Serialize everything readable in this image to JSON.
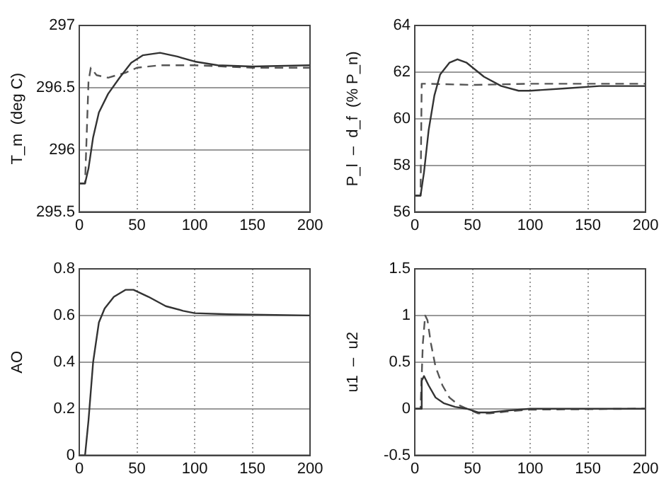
{
  "chart_data": [
    {
      "type": "line",
      "ylabel": "T_m  (deg C)",
      "xlim": [
        0,
        200
      ],
      "xticks": [
        0,
        50,
        100,
        150,
        200
      ],
      "ylim": [
        295.5,
        297
      ],
      "yticks": [
        295.5,
        296,
        296.5,
        297
      ],
      "grid": true,
      "legend": false,
      "marker": "none",
      "series": [
        {
          "color": "#333333",
          "line_style": "solid",
          "x": [
            0,
            5,
            8,
            12,
            17,
            25,
            35,
            45,
            55,
            70,
            85,
            100,
            120,
            150,
            200
          ],
          "values": [
            295.73,
            295.73,
            295.85,
            296.1,
            296.3,
            296.45,
            296.58,
            296.7,
            296.76,
            296.78,
            296.75,
            296.71,
            296.68,
            296.67,
            296.68
          ]
        },
        {
          "color": "#555555",
          "line_style": "dashed",
          "x": [
            0,
            5,
            8,
            10,
            15,
            25,
            40,
            50,
            70,
            100,
            150,
            200
          ],
          "values": [
            295.73,
            295.73,
            296.55,
            296.66,
            296.6,
            296.58,
            296.62,
            296.66,
            296.68,
            296.68,
            296.66,
            296.66
          ]
        }
      ]
    },
    {
      "type": "line",
      "ylabel": "P_l  –  d_f  (% P_n)",
      "xlim": [
        0,
        200
      ],
      "xticks": [
        0,
        50,
        100,
        150,
        200
      ],
      "ylim": [
        56,
        64
      ],
      "yticks": [
        56,
        58,
        60,
        62,
        64
      ],
      "grid": true,
      "legend": false,
      "marker": "none",
      "series": [
        {
          "color": "#333333",
          "line_style": "solid",
          "x": [
            0,
            5,
            8,
            12,
            17,
            22,
            30,
            37,
            45,
            60,
            75,
            90,
            100,
            130,
            160,
            200
          ],
          "values": [
            56.7,
            56.7,
            57.7,
            59.5,
            61,
            61.9,
            62.4,
            62.55,
            62.4,
            61.8,
            61.4,
            61.2,
            61.2,
            61.3,
            61.4,
            61.4
          ]
        },
        {
          "color": "#555555",
          "line_style": "dashed",
          "x": [
            0,
            5,
            6,
            10,
            50,
            100,
            200
          ],
          "values": [
            56.7,
            56.7,
            61.5,
            61.5,
            61.45,
            61.5,
            61.5
          ]
        }
      ]
    },
    {
      "type": "line",
      "ylabel": "AO",
      "xlim": [
        0,
        200
      ],
      "xticks": [
        0,
        50,
        100,
        150,
        200
      ],
      "ylim": [
        0,
        0.8
      ],
      "yticks": [
        0,
        0.2,
        0.4,
        0.6,
        0.8
      ],
      "grid": true,
      "legend": false,
      "marker": "none",
      "series": [
        {
          "color": "#333333",
          "line_style": "solid",
          "x": [
            0,
            5,
            6,
            8,
            12,
            17,
            22,
            30,
            40,
            47,
            60,
            75,
            90,
            100,
            130,
            160,
            200
          ],
          "values": [
            0,
            0,
            0,
            0.15,
            0.4,
            0.57,
            0.63,
            0.68,
            0.71,
            0.71,
            0.68,
            0.64,
            0.62,
            0.61,
            0.605,
            0.603,
            0.6
          ]
        }
      ]
    },
    {
      "type": "line",
      "ylabel": "u1  –  u2",
      "xlim": [
        0,
        200
      ],
      "xticks": [
        0,
        50,
        100,
        150,
        200
      ],
      "ylim": [
        -0.5,
        1.5
      ],
      "yticks": [
        -0.5,
        0,
        0.5,
        1,
        1.5
      ],
      "grid": true,
      "legend": false,
      "marker": "none",
      "series": [
        {
          "color": "#333333",
          "line_style": "solid",
          "x": [
            0,
            5,
            6,
            8,
            12,
            18,
            25,
            35,
            45,
            55,
            65,
            80,
            100,
            200
          ],
          "values": [
            0,
            0,
            0.3,
            0.35,
            0.25,
            0.12,
            0.06,
            0.02,
            0,
            -0.04,
            -0.04,
            -0.02,
            0,
            0
          ]
        },
        {
          "color": "#555555",
          "line_style": "dashed",
          "x": [
            0,
            5,
            7,
            9,
            11,
            14,
            18,
            24,
            30,
            38,
            45,
            55,
            65,
            80,
            100,
            200
          ],
          "values": [
            0,
            0,
            0.7,
            1.0,
            0.95,
            0.7,
            0.45,
            0.25,
            0.12,
            0.04,
            0,
            -0.05,
            -0.05,
            -0.03,
            -0.01,
            0
          ]
        }
      ]
    }
  ]
}
